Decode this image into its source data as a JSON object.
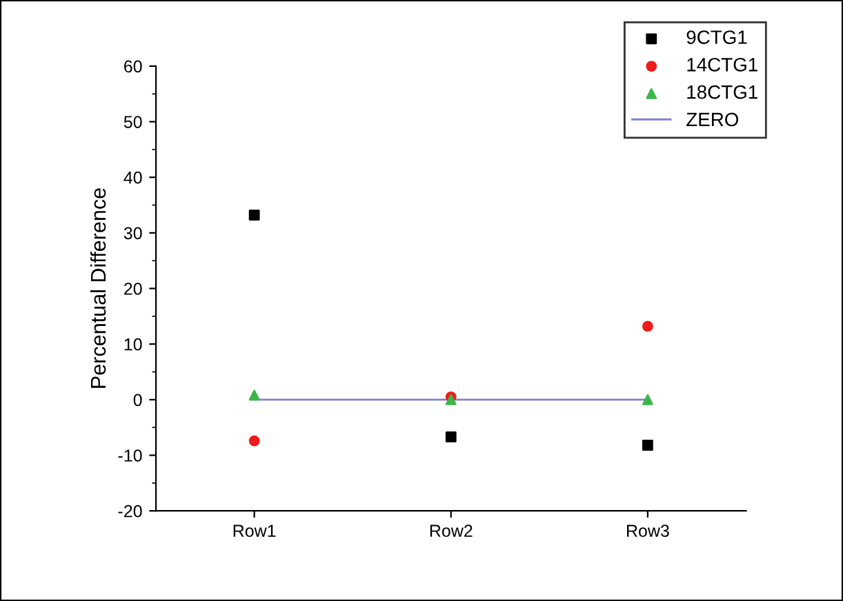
{
  "chart_data": {
    "type": "scatter",
    "ylabel": "Percentual Difference",
    "categories": [
      "Row1",
      "Row2",
      "Row3"
    ],
    "series": [
      {
        "name": "9CTG1",
        "color": "#000000",
        "marker": "square",
        "values": [
          33.2,
          -6.7,
          -8.2
        ]
      },
      {
        "name": "14CTG1",
        "color": "#ee1c1c",
        "marker": "circle",
        "values": [
          -7.4,
          0.5,
          13.2
        ]
      },
      {
        "name": "18CTG1",
        "color": "#3cb64a",
        "marker": "triangle",
        "values": [
          0.8,
          0,
          0
        ]
      },
      {
        "name": "ZERO",
        "type": "line",
        "color": "#8080dd",
        "marker": "none",
        "values": [
          0,
          0,
          0
        ]
      }
    ],
    "ylim": [
      -20,
      60
    ],
    "yticks": [
      -20,
      -10,
      0,
      10,
      20,
      30,
      40,
      50,
      60
    ],
    "grid": false,
    "legend": "top right"
  }
}
